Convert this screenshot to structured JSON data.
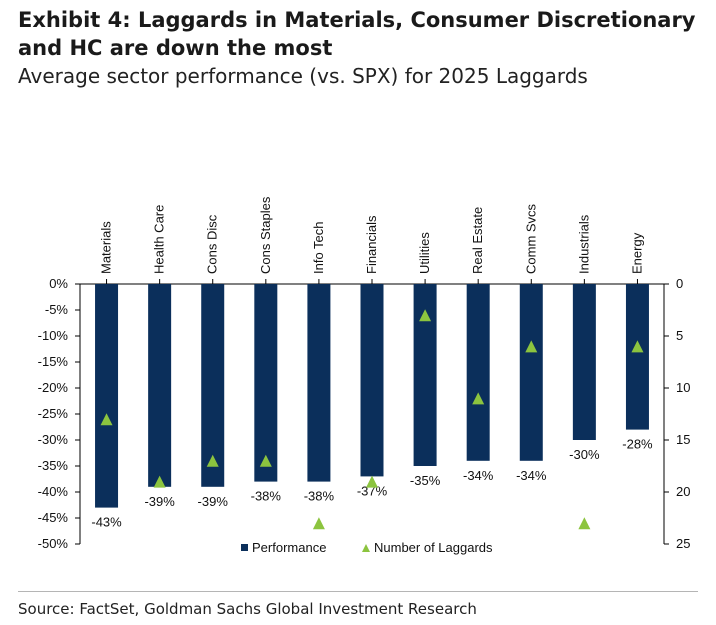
{
  "header": {
    "title": "Exhibit 4: Laggards in Materials, Consumer Discretionary and HC are down the most",
    "subtitle": "Average sector performance (vs. SPX) for 2025 Laggards"
  },
  "footer": {
    "source": "Source: FactSet, Goldman Sachs Global Investment Research"
  },
  "colors": {
    "bar": "#0b2f5b",
    "marker": "#8cc43f",
    "axis": "#000000",
    "text": "#111111"
  },
  "chart_data": {
    "type": "bar",
    "categories": [
      "Materials",
      "Health Care",
      "Cons Disc",
      "Cons Staples",
      "Info Tech",
      "Financials",
      "Utilities",
      "Real Estate",
      "Comm Svcs",
      "Industrials",
      "Energy"
    ],
    "series": [
      {
        "name": "Performance",
        "axis": "left",
        "values": [
          -43,
          -39,
          -39,
          -38,
          -38,
          -37,
          -35,
          -34,
          -34,
          -30,
          -28
        ],
        "labels": [
          "-43%",
          "-39%",
          "-39%",
          "-38%",
          "-38%",
          "-37%",
          "-35%",
          "-34%",
          "-34%",
          "-30%",
          "-28%"
        ]
      },
      {
        "name": "Number of Laggards",
        "axis": "right",
        "marker": "triangle",
        "values": [
          13,
          19,
          17,
          17,
          23,
          19,
          3,
          11,
          6,
          23,
          6
        ]
      }
    ],
    "y_left": {
      "min": -50,
      "max": 0,
      "step": 5,
      "ticks": [
        "0%",
        "-5%",
        "-10%",
        "-15%",
        "-20%",
        "-25%",
        "-30%",
        "-35%",
        "-40%",
        "-45%",
        "-50%"
      ]
    },
    "y_right": {
      "min": 0,
      "max": 25,
      "step": 5,
      "inverted": true,
      "ticks": [
        "0",
        "5",
        "10",
        "15",
        "20",
        "25"
      ]
    },
    "legend": {
      "position": "bottom-center",
      "entries": [
        "Performance",
        "Number of Laggards"
      ]
    },
    "grid": false
  }
}
